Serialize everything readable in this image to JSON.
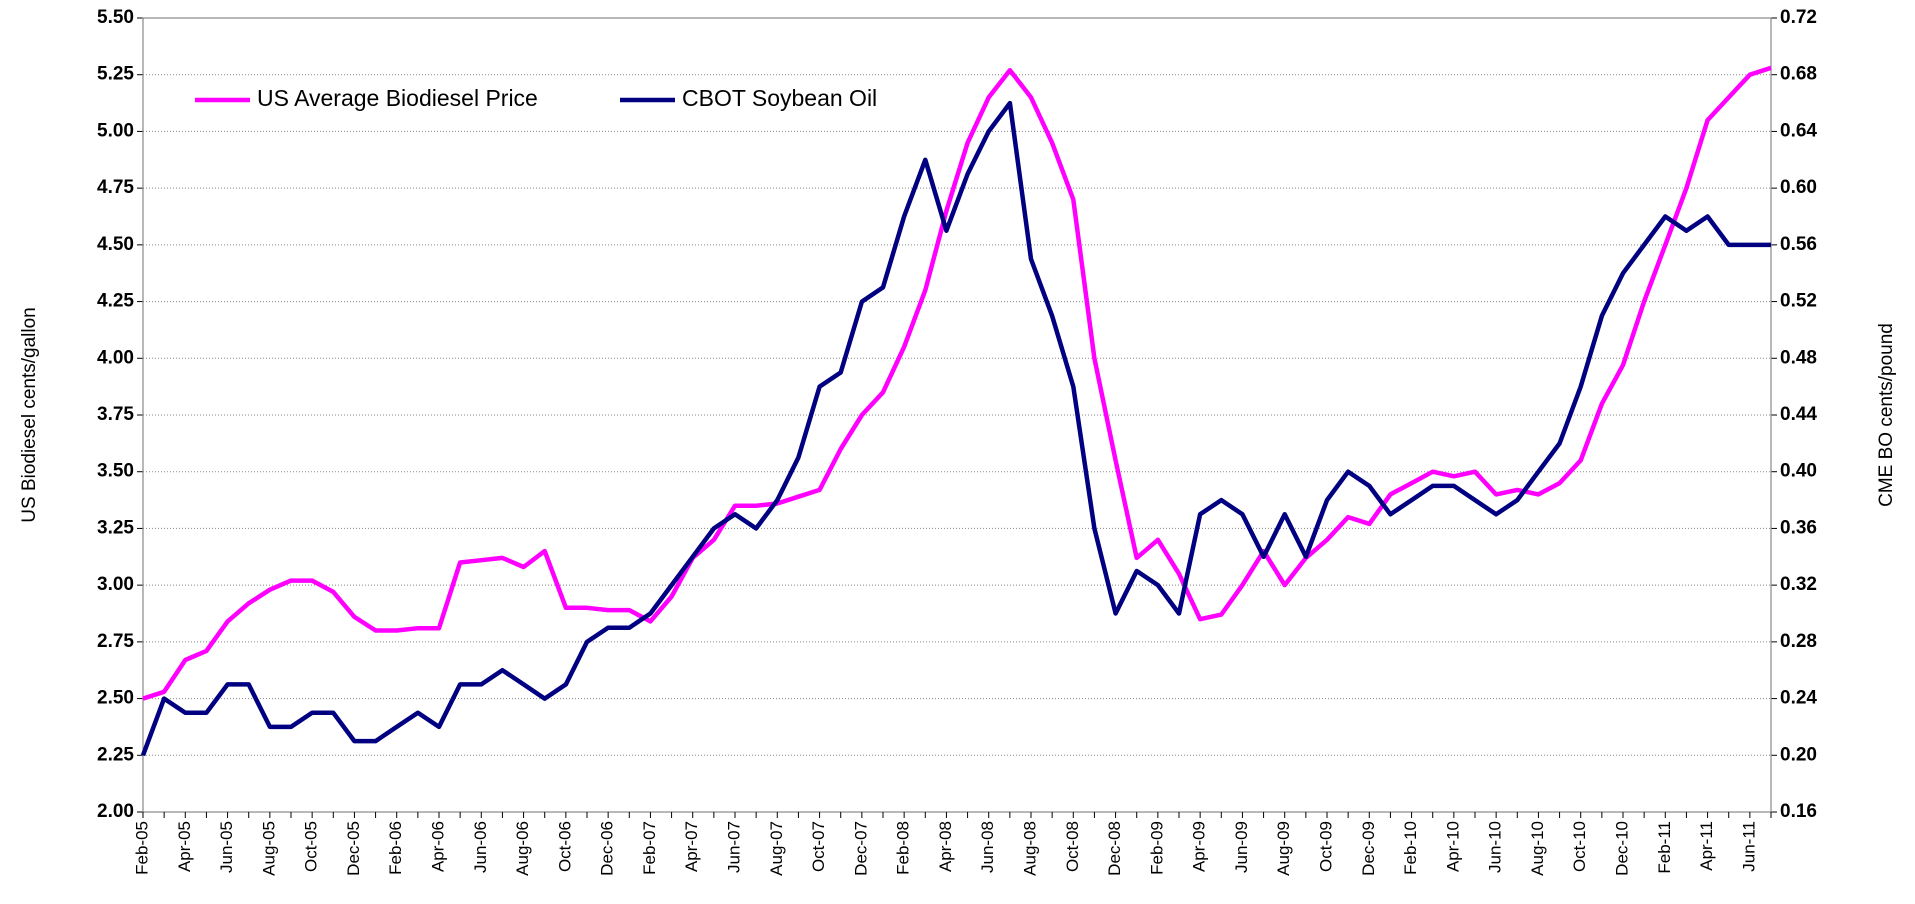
{
  "chart_data": {
    "type": "line",
    "y_label": "US Biodiesel cents/gallon",
    "y2_label": "CME BO cents/pound",
    "categories": [
      "Feb-05",
      null,
      "Apr-05",
      null,
      "Jun-05",
      null,
      "Aug-05",
      null,
      "Oct-05",
      null,
      "Dec-05",
      null,
      "Feb-06",
      null,
      "Apr-06",
      null,
      "Jun-06",
      null,
      "Aug-06",
      null,
      "Oct-06",
      null,
      "Dec-06",
      null,
      "Feb-07",
      null,
      "Apr-07",
      null,
      "Jun-07",
      null,
      "Aug-07",
      null,
      "Oct-07",
      null,
      "Dec-07",
      null,
      "Feb-08",
      null,
      "Apr-08",
      null,
      "Jun-08",
      null,
      "Aug-08",
      null,
      "Oct-08",
      null,
      "Dec-08",
      null,
      "Feb-09",
      null,
      "Apr-09",
      null,
      "Jun-09",
      null,
      "Aug-09",
      null,
      "Oct-09",
      null,
      "Dec-09",
      null,
      "Feb-10",
      null,
      "Apr-10",
      null,
      "Jun-10",
      null,
      "Aug-10",
      null,
      "Oct-10",
      null,
      "Dec-10",
      null,
      "Feb-11",
      null,
      "Apr-11",
      null,
      "Jun-11",
      null
    ],
    "series": [
      {
        "name": "US Average Biodiesel Price",
        "color": "#ff00ff",
        "axis": "y",
        "values": [
          2.5,
          2.53,
          2.67,
          2.71,
          2.84,
          2.92,
          2.98,
          3.02,
          3.02,
          2.97,
          2.86,
          2.8,
          2.8,
          2.81,
          2.81,
          3.1,
          3.11,
          3.12,
          3.08,
          3.15,
          2.9,
          2.9,
          2.89,
          2.89,
          2.84,
          2.95,
          3.12,
          3.2,
          3.35,
          3.35,
          3.36,
          3.39,
          3.42,
          3.6,
          3.75,
          3.85,
          4.05,
          4.3,
          4.65,
          4.95,
          5.15,
          5.27,
          5.15,
          4.95,
          4.7,
          4.0,
          3.55,
          3.12,
          3.2,
          3.05,
          2.85,
          2.87,
          3.0,
          3.15,
          3.0,
          3.12,
          3.2,
          3.3,
          3.27,
          3.4,
          3.45,
          3.5,
          3.48,
          3.5,
          3.4,
          3.42,
          3.4,
          3.45,
          3.55,
          3.8,
          3.97,
          4.25,
          4.5,
          4.75,
          5.05,
          5.15,
          5.25,
          5.28
        ]
      },
      {
        "name": "CBOT Soybean Oil",
        "color": "#000080",
        "axis": "y2",
        "values": [
          0.2,
          0.24,
          0.23,
          0.23,
          0.25,
          0.25,
          0.22,
          0.22,
          0.23,
          0.23,
          0.21,
          0.21,
          0.22,
          0.23,
          0.22,
          0.25,
          0.25,
          0.26,
          0.25,
          0.24,
          0.25,
          0.28,
          0.29,
          0.29,
          0.3,
          0.32,
          0.34,
          0.36,
          0.37,
          0.36,
          0.38,
          0.41,
          0.46,
          0.47,
          0.52,
          0.53,
          0.58,
          0.62,
          0.57,
          0.61,
          0.64,
          0.66,
          0.55,
          0.51,
          0.46,
          0.36,
          0.3,
          0.33,
          0.32,
          0.3,
          0.37,
          0.38,
          0.37,
          0.34,
          0.37,
          0.34,
          0.38,
          0.4,
          0.39,
          0.37,
          0.38,
          0.39,
          0.39,
          0.38,
          0.37,
          0.38,
          0.4,
          0.42,
          0.46,
          0.51,
          0.54,
          0.56,
          0.58,
          0.57,
          0.58,
          0.56,
          0.56,
          0.56
        ]
      }
    ],
    "ylim": [
      2.0,
      5.5
    ],
    "yticks": [
      {
        "value": 2.0,
        "label": "2.00"
      },
      2.25,
      {
        "value": 2.5,
        "label": "2.50"
      },
      2.75,
      {
        "value": 3.0,
        "label": "3.00"
      },
      3.25,
      {
        "value": 3.5,
        "label": "3.50"
      },
      3.75,
      {
        "value": 4.0,
        "label": "4.00"
      },
      4.25,
      {
        "value": 4.5,
        "label": "4.50"
      },
      4.75,
      {
        "value": 5.0,
        "label": "5.00"
      },
      5.25,
      {
        "value": 5.5,
        "label": "5.50"
      }
    ],
    "y2lim": [
      0.16,
      0.72
    ],
    "y2ticks": [
      0.16,
      {
        "value": 0.2,
        "label": "0.20"
      },
      0.24,
      0.28,
      0.32,
      0.36,
      {
        "value": 0.4,
        "label": "0.40"
      },
      0.44,
      0.48,
      0.52,
      0.56,
      {
        "value": 0.6,
        "label": "0.60"
      },
      0.64,
      0.68,
      0.72
    ],
    "grid": true,
    "legend": "top-left"
  }
}
